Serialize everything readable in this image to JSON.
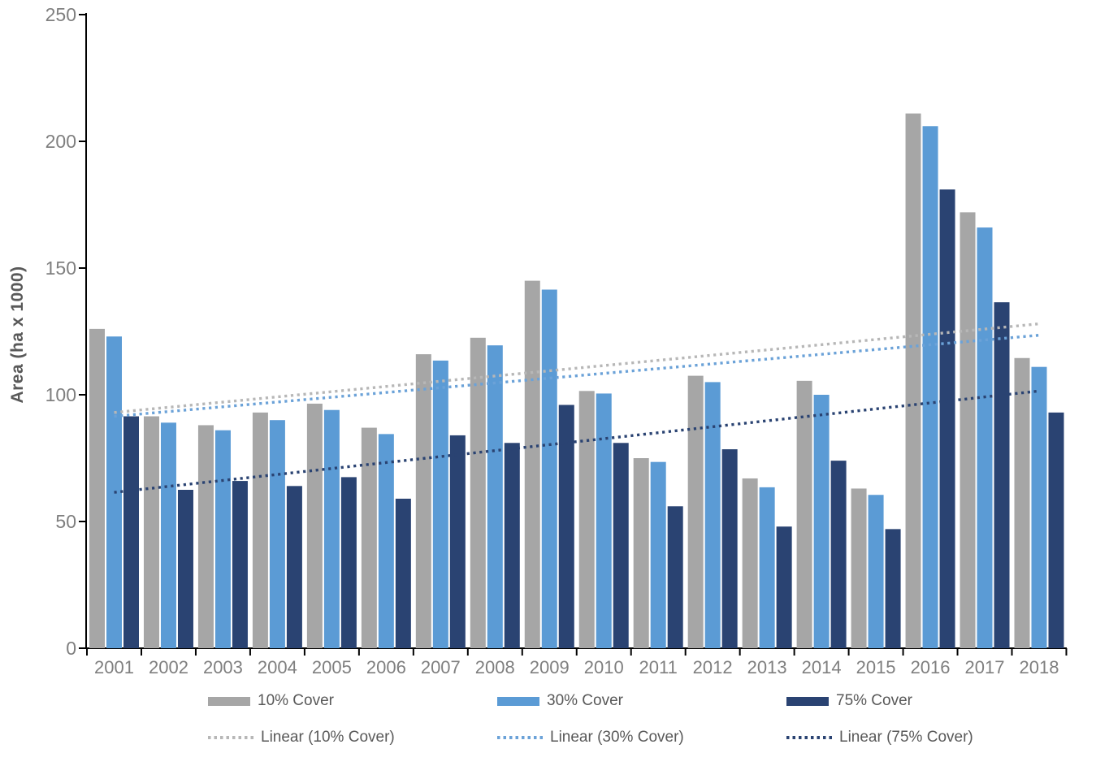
{
  "chart_data": {
    "type": "bar",
    "title": "",
    "xlabel": "",
    "ylabel": "Area (ha x 1000)",
    "ylim": [
      0,
      250
    ],
    "yticks": [
      0,
      50,
      100,
      150,
      200,
      250
    ],
    "grid": false,
    "legend_position": "bottom",
    "categories": [
      "2001",
      "2002",
      "2003",
      "2004",
      "2005",
      "2006",
      "2007",
      "2008",
      "2009",
      "2010",
      "2011",
      "2012",
      "2013",
      "2014",
      "2015",
      "2016",
      "2017",
      "2018"
    ],
    "series": [
      {
        "name": "10% Cover",
        "color": "#a6a6a6",
        "values": [
          126,
          91.5,
          88,
          93,
          96.5,
          87,
          116,
          122.5,
          145,
          101.5,
          75,
          107.5,
          67,
          105.5,
          63,
          211,
          172,
          114.5
        ]
      },
      {
        "name": "30% Cover",
        "color": "#5b9bd5",
        "values": [
          123,
          89,
          86,
          90,
          94,
          84.5,
          113.5,
          119.5,
          141.5,
          100.5,
          73.5,
          105,
          63.5,
          100,
          60.5,
          206,
          166,
          111
        ]
      },
      {
        "name": "75% Cover",
        "color": "#2a4372",
        "values": [
          91.5,
          62.5,
          66,
          64,
          67.5,
          59,
          84,
          81,
          96,
          81,
          56,
          78.5,
          48,
          74,
          47,
          181,
          136.5,
          93
        ]
      }
    ],
    "trendlines": [
      {
        "name": "Linear (10% Cover)",
        "color": "#b7b7b7",
        "start_value": 93,
        "end_value": 128
      },
      {
        "name": "Linear (30% Cover)",
        "color": "#6ba2d8",
        "start_value": 91.5,
        "end_value": 123.5
      },
      {
        "name": "Linear (75% Cover)",
        "color": "#2a4372",
        "start_value": 61.5,
        "end_value": 101.5
      }
    ],
    "axis_color": "#000000",
    "tick_label_color": "#7f7f7f"
  }
}
